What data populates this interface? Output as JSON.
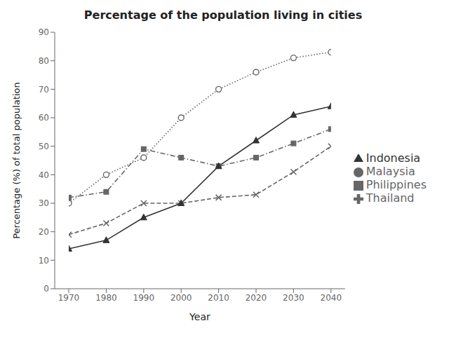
{
  "chart_data": {
    "type": "line",
    "title": "Percentage of the population living in cities",
    "xlabel": "Year",
    "ylabel": "Percentage (%) of total population",
    "x": [
      1970,
      1980,
      1990,
      2000,
      2010,
      2020,
      2030,
      2040
    ],
    "xlim": [
      1970,
      2040
    ],
    "xticks": [
      1970,
      1980,
      1990,
      2000,
      2010,
      2020,
      2030,
      2040
    ],
    "ylim": [
      0,
      90
    ],
    "yticks": [
      0,
      10,
      20,
      30,
      40,
      50,
      60,
      70,
      80,
      90
    ],
    "grid": false,
    "legend": "right",
    "series": [
      {
        "name": "Philippines",
        "color": "#666666",
        "values": [
          32,
          34,
          49,
          46,
          43,
          46,
          51,
          56
        ],
        "marker": "square",
        "line_style": "dashdot"
      },
      {
        "name": "Malaysia",
        "color": "#666666",
        "values": [
          30,
          40,
          46,
          60,
          70,
          76,
          81,
          83
        ],
        "marker": "circle",
        "line_style": "dotted"
      },
      {
        "name": "Thailand",
        "color": "#666666",
        "values": [
          19,
          23,
          30,
          30,
          32,
          33,
          41,
          50
        ],
        "marker": "x",
        "line_style": "dashed"
      },
      {
        "name": "Indonesia",
        "color": "#333333",
        "values": [
          14,
          17,
          25,
          30,
          43,
          52,
          61,
          64
        ],
        "marker": "triangle",
        "line_style": "solid"
      }
    ]
  }
}
